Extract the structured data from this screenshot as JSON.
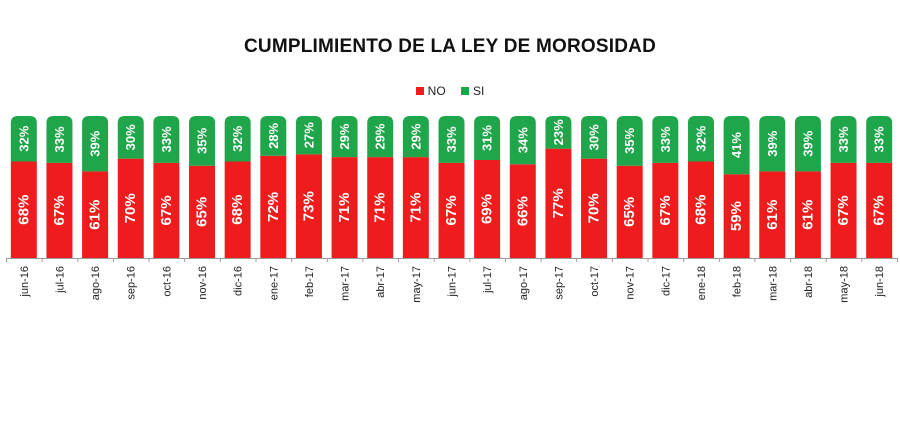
{
  "chart_data": {
    "type": "bar",
    "stacked": true,
    "title": "CUMPLIMIENTO DE LA LEY DE MOROSIDAD",
    "xlabel": "",
    "ylabel": "",
    "ylim": [
      0,
      100
    ],
    "legend_position": "top-center",
    "categories": [
      "jun-16",
      "jul-16",
      "ago-16",
      "sep-16",
      "oct-16",
      "nov-16",
      "dic-16",
      "ene-17",
      "feb-17",
      "mar-17",
      "abr-17",
      "may-17",
      "jun-17",
      "jul-17",
      "ago-17",
      "sep-17",
      "oct-17",
      "nov-17",
      "dic-17",
      "ene-18",
      "feb-18",
      "mar-18",
      "abr-18",
      "may-18",
      "jun-18"
    ],
    "series": [
      {
        "name": "NO",
        "color": "#ee1c1c",
        "values": [
          68,
          67,
          61,
          70,
          67,
          65,
          68,
          72,
          73,
          71,
          71,
          71,
          67,
          69,
          66,
          77,
          70,
          65,
          67,
          68,
          59,
          61,
          61,
          67,
          67
        ],
        "labels": [
          "68%",
          "67%",
          "61%",
          "70%",
          "67%",
          "65%",
          "68%",
          "72%",
          "73%",
          "71%",
          "71%",
          "71%",
          "67%",
          "69%",
          "66%",
          "77%",
          "70%",
          "65%",
          "67%",
          "68%",
          "59%",
          "61%",
          "61%",
          "67%",
          "67%"
        ]
      },
      {
        "name": "SI",
        "color": "#1fa64a",
        "values": [
          32,
          33,
          39,
          30,
          33,
          35,
          32,
          28,
          27,
          29,
          29,
          29,
          33,
          31,
          34,
          23,
          30,
          35,
          33,
          32,
          41,
          39,
          39,
          33,
          33
        ],
        "labels": [
          "32%",
          "33%",
          "39%",
          "30%",
          "33%",
          "35%",
          "32%",
          "28%",
          "27%",
          "29%",
          "29%",
          "29%",
          "33%",
          "31%",
          "34%",
          "23%",
          "30%",
          "35%",
          "33%",
          "32%",
          "41%",
          "39%",
          "39%",
          "33%",
          "33%"
        ]
      }
    ]
  }
}
